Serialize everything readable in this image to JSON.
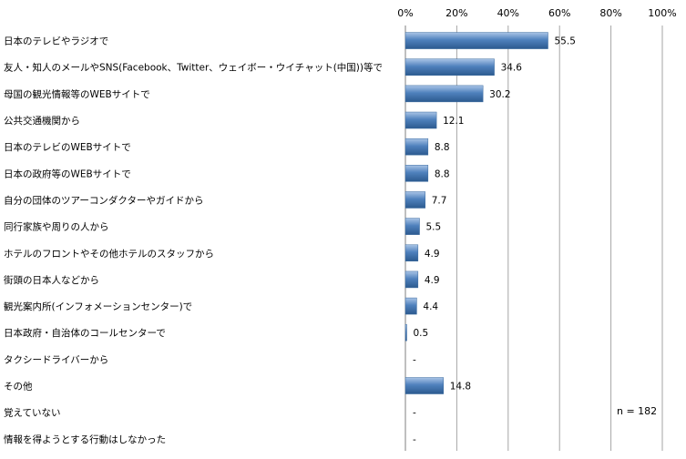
{
  "chart_data": {
    "type": "bar",
    "orientation": "horizontal",
    "title": "",
    "xlabel": "",
    "ylabel": "",
    "xlim": [
      0,
      100
    ],
    "xticks": [
      "0%",
      "20%",
      "40%",
      "60%",
      "80%",
      "100%"
    ],
    "grid": true,
    "legend": "none",
    "bar_color": "#4f81bd",
    "categories": [
      "日本のテレビやラジオで",
      "友人・知人のメールやSNS(Facebook、Twitter、ウェイボー・ウイチャット(中国))等で",
      "母国の観光情報等のWEBサイトで",
      "公共交通機関から",
      "日本のテレビのWEBサイトで",
      "日本の政府等のWEBサイトで",
      "自分の団体のツアーコンダクターやガイドから",
      "同行家族や周りの人から",
      "ホテルのフロントやその他ホテルのスタッフから",
      "街頭の日本人などから",
      "観光案内所(インフォメーションセンター)で",
      "日本政府・自治体のコールセンターで",
      "タクシードライバーから",
      "その他",
      "覚えていない",
      "情報を得ようとする行動はしなかった"
    ],
    "values": [
      55.5,
      34.6,
      30.2,
      12.1,
      8.8,
      8.8,
      7.7,
      5.5,
      4.9,
      4.9,
      4.4,
      0.5,
      null,
      14.8,
      null,
      null
    ],
    "data_labels": [
      "55.5",
      "34.6",
      "30.2",
      "12.1",
      "8.8",
      "8.8",
      "7.7",
      "5.5",
      "4.9",
      "4.9",
      "4.4",
      "0.5",
      "-",
      "14.8",
      "-",
      "-"
    ],
    "annotation": "n = 182"
  }
}
